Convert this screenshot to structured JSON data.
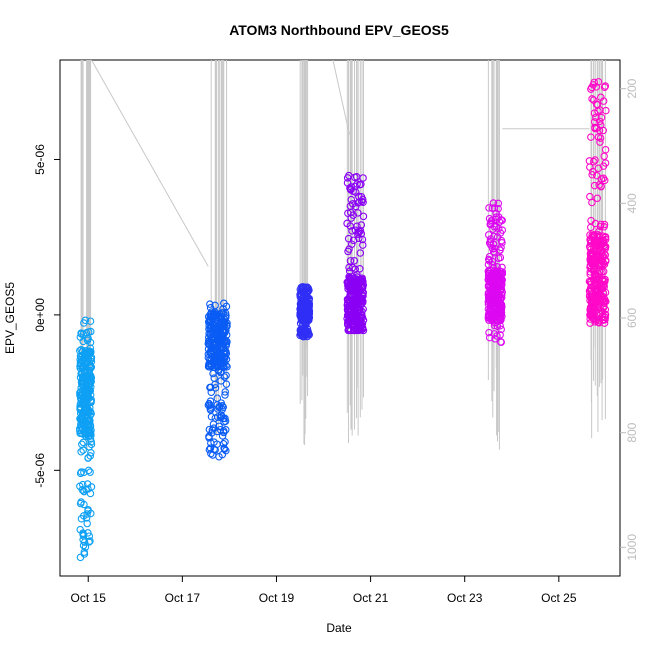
{
  "chart_data": {
    "type": "scatter",
    "title": "ATOM3 Northbound EPV_GEOS5",
    "xlabel": "Date",
    "ylabel": "EPV_GEOS5",
    "x_ticks": [
      {
        "value": 14.9,
        "label": "Oct 15"
      },
      {
        "value": 16.9,
        "label": "Oct 17"
      },
      {
        "value": 18.9,
        "label": "Oct 19"
      },
      {
        "value": 20.9,
        "label": "Oct 21"
      },
      {
        "value": 22.9,
        "label": "Oct 23"
      },
      {
        "value": 24.9,
        "label": "Oct 25"
      }
    ],
    "y_ticks": [
      {
        "value": 5e-06,
        "label": "5e-06"
      },
      {
        "value": 0,
        "label": "0e+00"
      },
      {
        "value": -5e-06,
        "label": "-5e-06"
      }
    ],
    "right_axis": {
      "quantity": "pressure",
      "range": [
        150,
        1050
      ],
      "ticks": [
        {
          "value": 200,
          "label": "200"
        },
        {
          "value": 400,
          "label": "400"
        },
        {
          "value": 600,
          "label": "600"
        },
        {
          "value": 800,
          "label": "800"
        },
        {
          "value": 1000,
          "label": "1000"
        }
      ]
    },
    "xlim": [
      14.3,
      26.2
    ],
    "ylim": [
      -8.4e-06,
      8.2e-06
    ],
    "grid": false,
    "legend": "none",
    "series": [
      {
        "color": "#0ea0f4",
        "x_range": [
          14.72,
          14.97
        ],
        "y_min": -7.9e-06,
        "y_max": 1e-07,
        "center": -2.5e-06
      },
      {
        "color": "#0a5cf5",
        "x_range": [
          17.45,
          17.85
        ],
        "y_min": -4.7e-06,
        "y_max": 4e-07,
        "center": -8e-07
      },
      {
        "color": "#2f2ff6",
        "x_range": [
          19.4,
          19.6
        ],
        "y_min": -7e-07,
        "y_max": 9e-07,
        "center": 1e-07
      },
      {
        "color": "#8a00f5",
        "x_range": [
          20.4,
          20.75
        ],
        "y_min": -5e-07,
        "y_max": 4.6e-06,
        "center": 3e-07
      },
      {
        "color": "#dd08f2",
        "x_range": [
          23.4,
          23.7
        ],
        "y_min": -9e-07,
        "y_max": 3.6e-06,
        "center": 6e-07
      },
      {
        "color": "#ff08c8",
        "x_range": [
          25.55,
          25.9
        ],
        "y_min": -3e-07,
        "y_max": 7.6e-06,
        "center": 1.2e-06
      }
    ],
    "pressure_trace_color": "#c8c8c8"
  }
}
